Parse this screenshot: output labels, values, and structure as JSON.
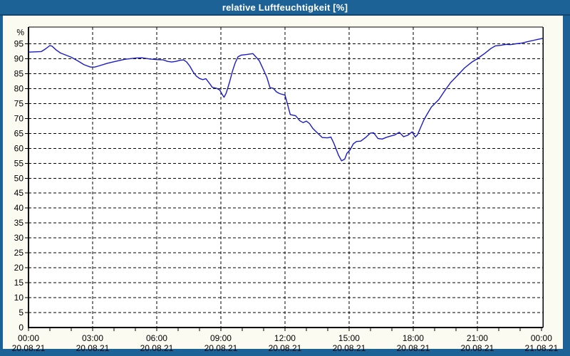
{
  "window": {
    "title": "relative Luftfeuchtigkeit [%]"
  },
  "colors": {
    "frame": "#1d6296",
    "title_text": "#ffffff",
    "window_bg": "#fcfbf2",
    "plot_bg": "#ffffff",
    "grid": "#000000",
    "axis": "#000000",
    "tick_text": "#000000",
    "line": "#1b1bc8"
  },
  "chart_data": {
    "type": "line",
    "title": "relative Luftfeuchtigkeit [%]",
    "ylabel": "%",
    "xlabel": "",
    "ylim": [
      0,
      100.6
    ],
    "xlim_hours": [
      0,
      24.07
    ],
    "grid": "dashed",
    "legend_position": "none",
    "y_unit_label": "%",
    "y_ticks": [
      0,
      5,
      10,
      15,
      20,
      25,
      30,
      35,
      40,
      45,
      50,
      55,
      60,
      65,
      70,
      75,
      80,
      85,
      90,
      95
    ],
    "x_minor_tick_every_hours": 1,
    "x_ticks": [
      {
        "hour": 0,
        "time": "00:00",
        "date": "20.08.21"
      },
      {
        "hour": 3,
        "time": "03:00",
        "date": "20.08.21"
      },
      {
        "hour": 6,
        "time": "06:00",
        "date": "20.08.21"
      },
      {
        "hour": 9,
        "time": "09:00",
        "date": "20.08.21"
      },
      {
        "hour": 12,
        "time": "12:00",
        "date": "20.08.21"
      },
      {
        "hour": 15,
        "time": "15:00",
        "date": "20.08.21"
      },
      {
        "hour": 18,
        "time": "18:00",
        "date": "20.08.21"
      },
      {
        "hour": 21,
        "time": "21:00",
        "date": "20.08.21"
      },
      {
        "hour": 24,
        "time": "00:00",
        "date": "21.08.21"
      }
    ],
    "series": [
      {
        "name": "relative Luftfeuchtigkeit",
        "color": "#1b1bc8",
        "points": [
          [
            0.0,
            92.2
          ],
          [
            0.3,
            92.3
          ],
          [
            0.6,
            92.4
          ],
          [
            0.8,
            93.3
          ],
          [
            1.0,
            94.4
          ],
          [
            1.1,
            94.2
          ],
          [
            1.3,
            92.9
          ],
          [
            1.5,
            91.9
          ],
          [
            1.75,
            91.2
          ],
          [
            2.0,
            90.5
          ],
          [
            2.3,
            89.3
          ],
          [
            2.6,
            88.0
          ],
          [
            2.9,
            87.2
          ],
          [
            3.1,
            87.2
          ],
          [
            3.3,
            87.6
          ],
          [
            3.7,
            88.5
          ],
          [
            4.0,
            89.0
          ],
          [
            4.5,
            89.8
          ],
          [
            5.0,
            90.2
          ],
          [
            5.3,
            90.3
          ],
          [
            5.7,
            89.9
          ],
          [
            6.0,
            89.7
          ],
          [
            6.3,
            89.6
          ],
          [
            6.5,
            89.1
          ],
          [
            6.7,
            88.9
          ],
          [
            6.9,
            89.1
          ],
          [
            7.1,
            89.5
          ],
          [
            7.25,
            89.6
          ],
          [
            7.4,
            88.9
          ],
          [
            7.55,
            87.5
          ],
          [
            7.7,
            85.6
          ],
          [
            7.85,
            84.2
          ],
          [
            8.0,
            83.4
          ],
          [
            8.15,
            83.0
          ],
          [
            8.3,
            83.3
          ],
          [
            8.45,
            81.9
          ],
          [
            8.6,
            80.4
          ],
          [
            8.8,
            80.1
          ],
          [
            8.95,
            79.5
          ],
          [
            9.05,
            78.2
          ],
          [
            9.15,
            77.1
          ],
          [
            9.25,
            78.5
          ],
          [
            9.4,
            82.0
          ],
          [
            9.55,
            86.0
          ],
          [
            9.67,
            88.6
          ],
          [
            9.8,
            90.6
          ],
          [
            9.95,
            91.2
          ],
          [
            10.2,
            91.4
          ],
          [
            10.5,
            91.7
          ],
          [
            10.65,
            90.5
          ],
          [
            10.8,
            89.3
          ],
          [
            11.0,
            86.2
          ],
          [
            11.15,
            83.8
          ],
          [
            11.3,
            80.3
          ],
          [
            11.45,
            80.1
          ],
          [
            11.6,
            78.9
          ],
          [
            11.75,
            78.3
          ],
          [
            12.0,
            77.8
          ],
          [
            12.1,
            75.3
          ],
          [
            12.25,
            71.3
          ],
          [
            12.5,
            70.9
          ],
          [
            12.7,
            69.2
          ],
          [
            12.85,
            68.6
          ],
          [
            13.0,
            69.1
          ],
          [
            13.15,
            68.3
          ],
          [
            13.3,
            66.7
          ],
          [
            13.5,
            65.3
          ],
          [
            13.75,
            63.6
          ],
          [
            14.0,
            63.5
          ],
          [
            14.15,
            63.8
          ],
          [
            14.3,
            61.5
          ],
          [
            14.5,
            57.8
          ],
          [
            14.65,
            55.8
          ],
          [
            14.8,
            56.4
          ],
          [
            14.9,
            58.3
          ],
          [
            15.05,
            59.5
          ],
          [
            15.2,
            61.5
          ],
          [
            15.35,
            62.3
          ],
          [
            15.55,
            62.4
          ],
          [
            15.8,
            63.8
          ],
          [
            16.0,
            65.1
          ],
          [
            16.15,
            65.2
          ],
          [
            16.35,
            63.3
          ],
          [
            16.55,
            63.1
          ],
          [
            16.75,
            63.7
          ],
          [
            16.95,
            64.1
          ],
          [
            17.15,
            64.5
          ],
          [
            17.35,
            65.4
          ],
          [
            17.55,
            63.9
          ],
          [
            17.75,
            64.4
          ],
          [
            17.95,
            65.5
          ],
          [
            18.1,
            63.8
          ],
          [
            18.2,
            64.5
          ],
          [
            18.35,
            67.0
          ],
          [
            18.5,
            69.5
          ],
          [
            18.65,
            71.4
          ],
          [
            18.85,
            73.8
          ],
          [
            19.2,
            76.3
          ],
          [
            19.45,
            79.0
          ],
          [
            19.75,
            82.0
          ],
          [
            20.1,
            84.6
          ],
          [
            20.4,
            86.9
          ],
          [
            20.75,
            88.9
          ],
          [
            21.0,
            90.0
          ],
          [
            21.35,
            91.8
          ],
          [
            21.65,
            93.5
          ],
          [
            21.85,
            94.3
          ],
          [
            22.1,
            94.5
          ],
          [
            22.35,
            94.8
          ],
          [
            22.55,
            94.7
          ],
          [
            22.8,
            95.0
          ],
          [
            23.05,
            95.2
          ],
          [
            23.35,
            95.7
          ],
          [
            23.65,
            96.2
          ],
          [
            23.85,
            96.5
          ],
          [
            24.05,
            96.8
          ]
        ]
      }
    ]
  }
}
